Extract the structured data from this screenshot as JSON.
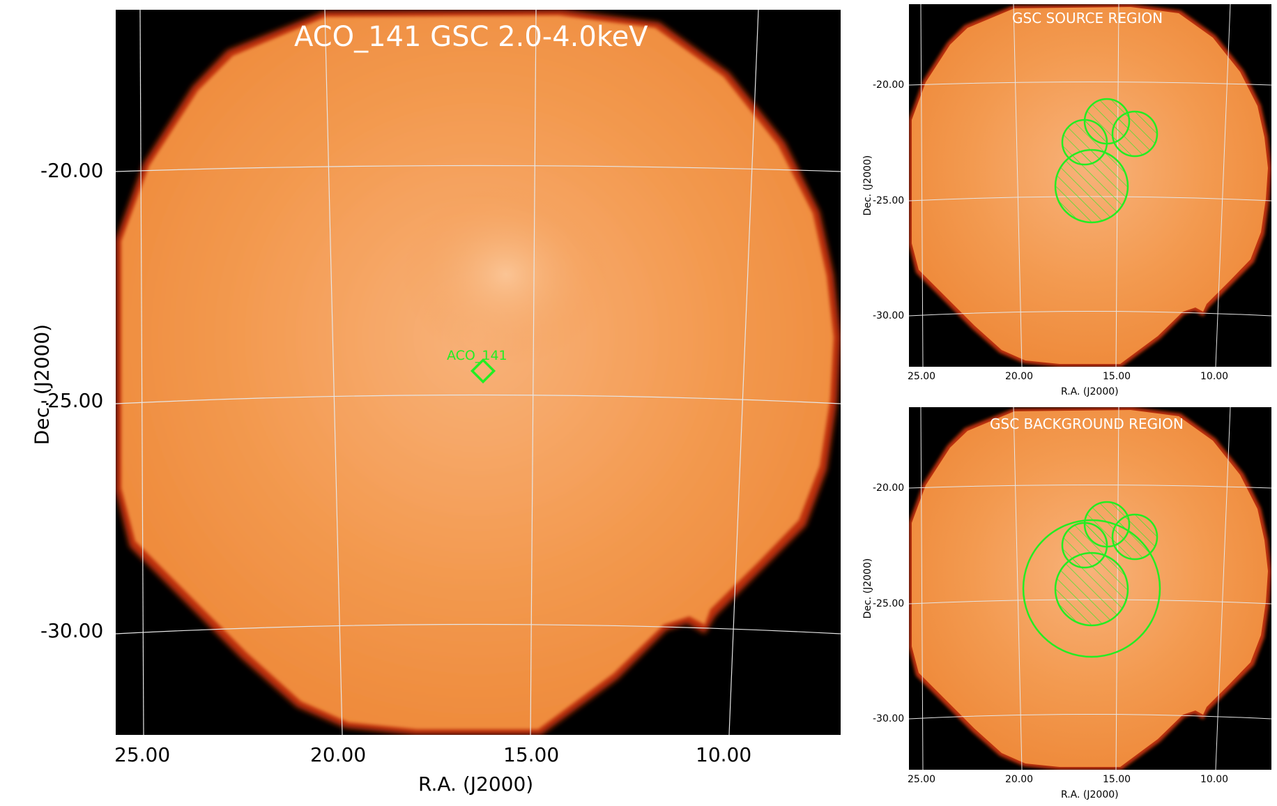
{
  "main": {
    "title": "ACO_141 GSC 2.0-4.0keV",
    "xlabel": "R.A. (J2000)",
    "ylabel": "Dec. (J2000)",
    "xticks": [
      "25.00",
      "20.00",
      "15.00",
      "10.00"
    ],
    "yticks": [
      "-20.00",
      "-25.00",
      "-30.00"
    ],
    "marker_label": "ACO_141"
  },
  "source_panel": {
    "title": "GSC SOURCE REGION",
    "xlabel": "R.A. (J2000)",
    "ylabel": "Dec. (J2000)",
    "xticks": [
      "25.00",
      "20.00",
      "15.00",
      "10.00"
    ],
    "yticks": [
      "-20.00",
      "-25.00",
      "-30.00"
    ]
  },
  "background_panel": {
    "title": "GSC BACKGROUND REGION",
    "xlabel": "R.A. (J2000)",
    "ylabel": "Dec. (J2000)",
    "xticks": [
      "25.00",
      "20.00",
      "15.00",
      "10.00"
    ],
    "yticks": [
      "-20.00",
      "-25.00",
      "-30.00"
    ]
  },
  "colors": {
    "field": "#f08a3a",
    "edge": "#b3260c",
    "background": "#000000",
    "region": "#22ee22",
    "grid": "#dddddd"
  }
}
